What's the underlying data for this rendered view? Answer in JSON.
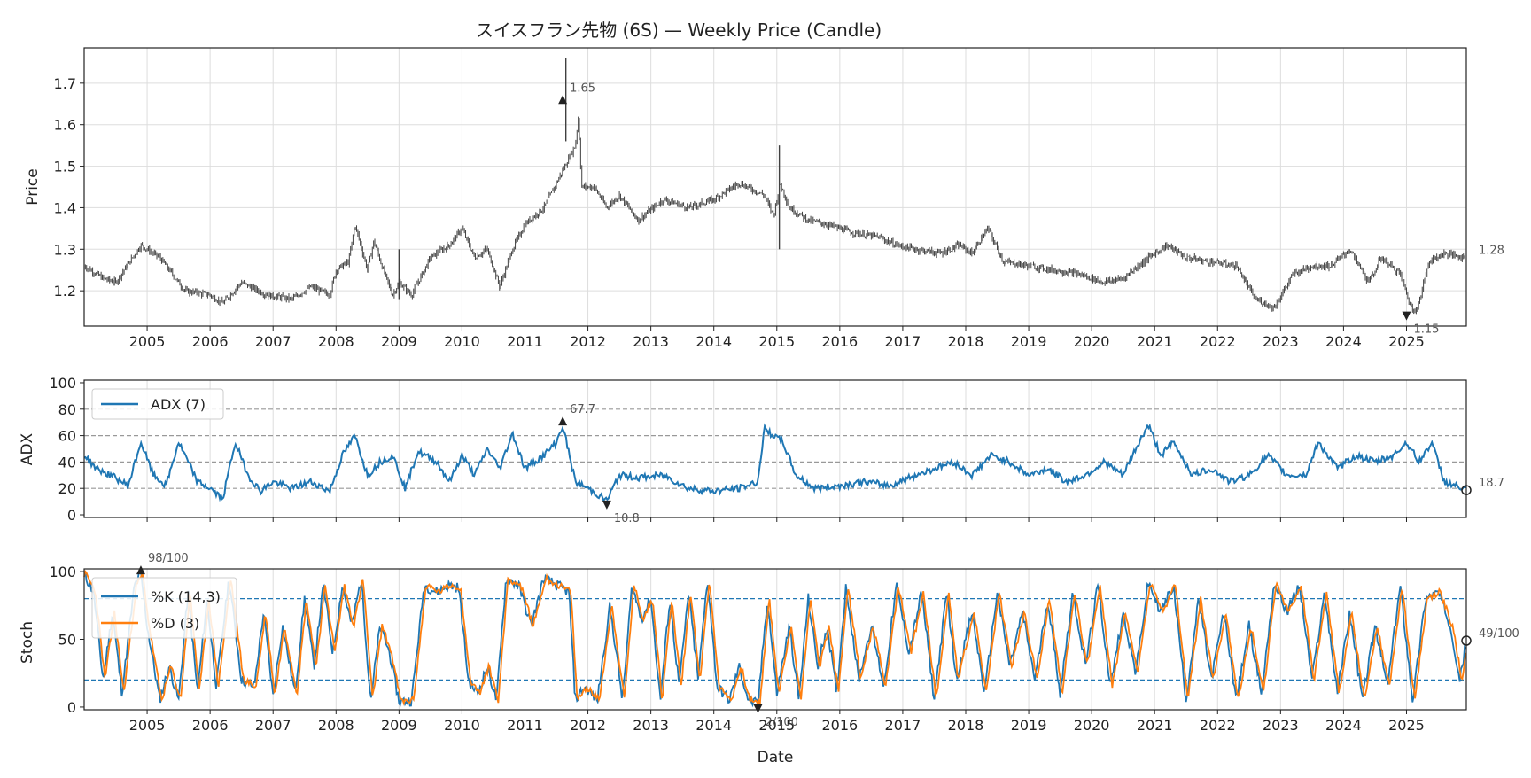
{
  "title": "スイスフラン先物 (6S) — Weekly Price (Candle)",
  "xlabel": "Date",
  "years": [
    "2005",
    "2006",
    "2007",
    "2008",
    "2009",
    "2010",
    "2011",
    "2012",
    "2013",
    "2014",
    "2015",
    "2016",
    "2017",
    "2018",
    "2019",
    "2020",
    "2021",
    "2022",
    "2023",
    "2024",
    "2025"
  ],
  "colors": {
    "price": "#404040",
    "adx": "#1f77b4",
    "k": "#1f77b4",
    "d": "#ff7f0e",
    "ref_gray": "#999999",
    "ref_blue": "#1f77b4",
    "grid": "#dddddd",
    "marker": "#222222"
  },
  "chart_data": [
    {
      "type": "candlestick",
      "title": "スイスフラン先物 (6S) — Weekly Price (Candle)",
      "ylabel": "Price",
      "ylim": [
        1.115,
        1.785
      ],
      "yticks": [
        "1.2",
        "1.3",
        "1.4",
        "1.5",
        "1.6",
        "1.7"
      ],
      "xlim": [
        2004.0,
        2025.95
      ],
      "close_keypoints": [
        [
          2004.0,
          1.26
        ],
        [
          2004.3,
          1.23
        ],
        [
          2004.5,
          1.22
        ],
        [
          2004.9,
          1.31
        ],
        [
          2005.2,
          1.28
        ],
        [
          2005.6,
          1.2
        ],
        [
          2006.0,
          1.19
        ],
        [
          2006.2,
          1.17
        ],
        [
          2006.5,
          1.22
        ],
        [
          2006.9,
          1.19
        ],
        [
          2007.3,
          1.18
        ],
        [
          2007.6,
          1.21
        ],
        [
          2007.9,
          1.19
        ],
        [
          2008.0,
          1.25
        ],
        [
          2008.2,
          1.27
        ],
        [
          2008.3,
          1.36
        ],
        [
          2008.5,
          1.25
        ],
        [
          2008.6,
          1.32
        ],
        [
          2008.75,
          1.25
        ],
        [
          2008.9,
          1.19
        ],
        [
          2009.0,
          1.22
        ],
        [
          2009.2,
          1.19
        ],
        [
          2009.5,
          1.28
        ],
        [
          2009.8,
          1.31
        ],
        [
          2010.0,
          1.35
        ],
        [
          2010.2,
          1.28
        ],
        [
          2010.4,
          1.3
        ],
        [
          2010.6,
          1.21
        ],
        [
          2010.8,
          1.3
        ],
        [
          2011.0,
          1.36
        ],
        [
          2011.3,
          1.4
        ],
        [
          2011.6,
          1.49
        ],
        [
          2011.8,
          1.55
        ],
        [
          2011.85,
          1.62
        ],
        [
          2011.9,
          1.45
        ],
        [
          2012.1,
          1.45
        ],
        [
          2012.3,
          1.4
        ],
        [
          2012.5,
          1.43
        ],
        [
          2012.8,
          1.37
        ],
        [
          2013.2,
          1.42
        ],
        [
          2013.6,
          1.4
        ],
        [
          2014.0,
          1.42
        ],
        [
          2014.4,
          1.46
        ],
        [
          2014.8,
          1.43
        ],
        [
          2014.95,
          1.38
        ],
        [
          2015.05,
          1.46
        ],
        [
          2015.2,
          1.4
        ],
        [
          2015.5,
          1.37
        ],
        [
          2015.8,
          1.36
        ],
        [
          2016.2,
          1.34
        ],
        [
          2016.6,
          1.33
        ],
        [
          2016.9,
          1.31
        ],
        [
          2017.2,
          1.3
        ],
        [
          2017.6,
          1.29
        ],
        [
          2017.9,
          1.31
        ],
        [
          2018.1,
          1.29
        ],
        [
          2018.35,
          1.35
        ],
        [
          2018.6,
          1.27
        ],
        [
          2019.0,
          1.26
        ],
        [
          2019.4,
          1.25
        ],
        [
          2019.8,
          1.24
        ],
        [
          2020.2,
          1.22
        ],
        [
          2020.5,
          1.23
        ],
        [
          2020.9,
          1.28
        ],
        [
          2021.2,
          1.31
        ],
        [
          2021.5,
          1.28
        ],
        [
          2021.9,
          1.27
        ],
        [
          2022.3,
          1.26
        ],
        [
          2022.6,
          1.18
        ],
        [
          2022.9,
          1.16
        ],
        [
          2023.2,
          1.24
        ],
        [
          2023.5,
          1.26
        ],
        [
          2023.8,
          1.26
        ],
        [
          2024.1,
          1.3
        ],
        [
          2024.4,
          1.22
        ],
        [
          2024.6,
          1.28
        ],
        [
          2024.9,
          1.24
        ],
        [
          2025.05,
          1.17
        ],
        [
          2025.1,
          1.15
        ],
        [
          2025.2,
          1.17
        ],
        [
          2025.35,
          1.27
        ],
        [
          2025.6,
          1.29
        ],
        [
          2025.95,
          1.28
        ]
      ],
      "annotations": [
        {
          "label": "1.65",
          "x": 2011.6,
          "y": 1.65,
          "marker": "up"
        },
        {
          "label": "1.15",
          "x": 2025.0,
          "y": 1.15,
          "marker": "down"
        },
        {
          "label": "1.28",
          "x": 2025.95,
          "y": 1.28,
          "marker": "none"
        }
      ]
    },
    {
      "type": "line",
      "ylabel": "ADX",
      "ylim": [
        -2,
        102
      ],
      "yticks": [
        "0",
        "20",
        "40",
        "60",
        "80",
        "100"
      ],
      "reference_lines": [
        20,
        40,
        60,
        80
      ],
      "legend": "ADX (7)",
      "series_keypoints": [
        [
          2004.0,
          45
        ],
        [
          2004.2,
          35
        ],
        [
          2004.5,
          28
        ],
        [
          2004.7,
          22
        ],
        [
          2004.9,
          55
        ],
        [
          2005.1,
          30
        ],
        [
          2005.3,
          22
        ],
        [
          2005.5,
          55
        ],
        [
          2005.8,
          25
        ],
        [
          2006.0,
          20
        ],
        [
          2006.2,
          12
        ],
        [
          2006.4,
          55
        ],
        [
          2006.6,
          30
        ],
        [
          2006.8,
          18
        ],
        [
          2007.0,
          25
        ],
        [
          2007.3,
          20
        ],
        [
          2007.6,
          25
        ],
        [
          2007.9,
          18
        ],
        [
          2008.1,
          45
        ],
        [
          2008.3,
          60
        ],
        [
          2008.5,
          30
        ],
        [
          2008.7,
          40
        ],
        [
          2008.9,
          45
        ],
        [
          2009.1,
          20
        ],
        [
          2009.3,
          48
        ],
        [
          2009.6,
          40
        ],
        [
          2009.8,
          25
        ],
        [
          2010.0,
          45
        ],
        [
          2010.2,
          30
        ],
        [
          2010.4,
          50
        ],
        [
          2010.6,
          35
        ],
        [
          2010.8,
          62
        ],
        [
          2011.0,
          35
        ],
        [
          2011.3,
          45
        ],
        [
          2011.5,
          55
        ],
        [
          2011.6,
          67.7
        ],
        [
          2011.8,
          25
        ],
        [
          2012.0,
          20
        ],
        [
          2012.3,
          10.8
        ],
        [
          2012.5,
          30
        ],
        [
          2012.8,
          28
        ],
        [
          2013.2,
          30
        ],
        [
          2013.6,
          20
        ],
        [
          2014.0,
          18
        ],
        [
          2014.4,
          20
        ],
        [
          2014.7,
          25
        ],
        [
          2014.8,
          65
        ],
        [
          2015.1,
          55
        ],
        [
          2015.3,
          30
        ],
        [
          2015.6,
          20
        ],
        [
          2016.0,
          22
        ],
        [
          2016.4,
          25
        ],
        [
          2016.8,
          22
        ],
        [
          2017.2,
          30
        ],
        [
          2017.5,
          35
        ],
        [
          2017.8,
          40
        ],
        [
          2018.1,
          30
        ],
        [
          2018.4,
          45
        ],
        [
          2018.7,
          40
        ],
        [
          2019.0,
          30
        ],
        [
          2019.3,
          35
        ],
        [
          2019.6,
          25
        ],
        [
          2019.9,
          30
        ],
        [
          2020.2,
          40
        ],
        [
          2020.5,
          30
        ],
        [
          2020.7,
          50
        ],
        [
          2020.9,
          68
        ],
        [
          2021.1,
          45
        ],
        [
          2021.3,
          55
        ],
        [
          2021.6,
          30
        ],
        [
          2021.9,
          35
        ],
        [
          2022.2,
          25
        ],
        [
          2022.5,
          30
        ],
        [
          2022.8,
          45
        ],
        [
          2023.1,
          30
        ],
        [
          2023.4,
          30
        ],
        [
          2023.6,
          55
        ],
        [
          2023.9,
          35
        ],
        [
          2024.2,
          45
        ],
        [
          2024.5,
          40
        ],
        [
          2024.8,
          45
        ],
        [
          2025.0,
          55
        ],
        [
          2025.2,
          40
        ],
        [
          2025.4,
          55
        ],
        [
          2025.6,
          25
        ],
        [
          2025.95,
          18.7
        ]
      ],
      "annotations": [
        {
          "label": "67.7",
          "x": 2011.6,
          "y": 67.7,
          "marker": "up"
        },
        {
          "label": "10.8",
          "x": 2012.3,
          "y": 10.8,
          "marker": "down"
        },
        {
          "label": "18.7",
          "x": 2025.95,
          "y": 18.7,
          "marker": "circle"
        }
      ]
    },
    {
      "type": "line",
      "ylabel": "Stoch",
      "ylim": [
        -2,
        102
      ],
      "yticks": [
        "0",
        "50",
        "100"
      ],
      "reference_lines": [
        20,
        80
      ],
      "legend": [
        "%K (14,3)",
        "%D (3)"
      ],
      "k_keypoints": [
        [
          2004.0,
          98
        ],
        [
          2004.15,
          85
        ],
        [
          2004.3,
          20
        ],
        [
          2004.45,
          70
        ],
        [
          2004.6,
          10
        ],
        [
          2004.8,
          90
        ],
        [
          2004.9,
          98
        ],
        [
          2005.0,
          60
        ],
        [
          2005.2,
          5
        ],
        [
          2005.35,
          30
        ],
        [
          2005.5,
          5
        ],
        [
          2005.65,
          85
        ],
        [
          2005.8,
          10
        ],
        [
          2005.95,
          80
        ],
        [
          2006.1,
          15
        ],
        [
          2006.3,
          95
        ],
        [
          2006.5,
          20
        ],
        [
          2006.7,
          15
        ],
        [
          2006.85,
          70
        ],
        [
          2007.0,
          8
        ],
        [
          2007.15,
          60
        ],
        [
          2007.35,
          10
        ],
        [
          2007.5,
          80
        ],
        [
          2007.65,
          30
        ],
        [
          2007.8,
          90
        ],
        [
          2007.95,
          40
        ],
        [
          2008.1,
          90
        ],
        [
          2008.25,
          60
        ],
        [
          2008.4,
          95
        ],
        [
          2008.55,
          5
        ],
        [
          2008.7,
          60
        ],
        [
          2008.85,
          40
        ],
        [
          2009.0,
          4
        ],
        [
          2009.2,
          5
        ],
        [
          2009.4,
          90
        ],
        [
          2009.6,
          85
        ],
        [
          2009.8,
          90
        ],
        [
          2009.95,
          88
        ],
        [
          2010.1,
          20
        ],
        [
          2010.25,
          10
        ],
        [
          2010.4,
          30
        ],
        [
          2010.55,
          5
        ],
        [
          2010.7,
          95
        ],
        [
          2010.9,
          90
        ],
        [
          2011.1,
          60
        ],
        [
          2011.3,
          95
        ],
        [
          2011.5,
          90
        ],
        [
          2011.7,
          85
        ],
        [
          2011.8,
          5
        ],
        [
          2011.95,
          15
        ],
        [
          2012.15,
          5
        ],
        [
          2012.35,
          75
        ],
        [
          2012.55,
          5
        ],
        [
          2012.7,
          90
        ],
        [
          2012.85,
          65
        ],
        [
          2013.0,
          80
        ],
        [
          2013.15,
          5
        ],
        [
          2013.3,
          80
        ],
        [
          2013.45,
          15
        ],
        [
          2013.6,
          85
        ],
        [
          2013.75,
          20
        ],
        [
          2013.9,
          95
        ],
        [
          2014.05,
          15
        ],
        [
          2014.25,
          5
        ],
        [
          2014.4,
          30
        ],
        [
          2014.55,
          5
        ],
        [
          2014.7,
          2
        ],
        [
          2014.85,
          80
        ],
        [
          2015.0,
          10
        ],
        [
          2015.2,
          60
        ],
        [
          2015.35,
          5
        ],
        [
          2015.5,
          80
        ],
        [
          2015.65,
          30
        ],
        [
          2015.8,
          60
        ],
        [
          2015.95,
          10
        ],
        [
          2016.1,
          90
        ],
        [
          2016.3,
          20
        ],
        [
          2016.5,
          60
        ],
        [
          2016.7,
          15
        ],
        [
          2016.9,
          90
        ],
        [
          2017.1,
          40
        ],
        [
          2017.3,
          85
        ],
        [
          2017.5,
          5
        ],
        [
          2017.7,
          85
        ],
        [
          2017.85,
          20
        ],
        [
          2018.1,
          70
        ],
        [
          2018.3,
          10
        ],
        [
          2018.5,
          85
        ],
        [
          2018.7,
          30
        ],
        [
          2018.9,
          70
        ],
        [
          2019.1,
          20
        ],
        [
          2019.3,
          80
        ],
        [
          2019.5,
          10
        ],
        [
          2019.7,
          85
        ],
        [
          2019.9,
          30
        ],
        [
          2020.1,
          90
        ],
        [
          2020.3,
          15
        ],
        [
          2020.5,
          70
        ],
        [
          2020.7,
          25
        ],
        [
          2020.9,
          92
        ],
        [
          2021.1,
          70
        ],
        [
          2021.3,
          90
        ],
        [
          2021.5,
          5
        ],
        [
          2021.7,
          80
        ],
        [
          2021.9,
          20
        ],
        [
          2022.1,
          70
        ],
        [
          2022.3,
          5
        ],
        [
          2022.5,
          60
        ],
        [
          2022.7,
          10
        ],
        [
          2022.9,
          92
        ],
        [
          2023.1,
          70
        ],
        [
          2023.3,
          90
        ],
        [
          2023.5,
          20
        ],
        [
          2023.7,
          85
        ],
        [
          2023.9,
          10
        ],
        [
          2024.1,
          70
        ],
        [
          2024.3,
          5
        ],
        [
          2024.5,
          60
        ],
        [
          2024.7,
          15
        ],
        [
          2024.9,
          90
        ],
        [
          2025.1,
          5
        ],
        [
          2025.3,
          80
        ],
        [
          2025.5,
          85
        ],
        [
          2025.7,
          60
        ],
        [
          2025.85,
          20
        ],
        [
          2025.95,
          49
        ]
      ],
      "annotations": [
        {
          "label": "98/100",
          "x": 2004.9,
          "y": 98,
          "marker": "up"
        },
        {
          "label": "2/100",
          "x": 2014.7,
          "y": 2,
          "marker": "down"
        },
        {
          "label": "49/100",
          "x": 2025.95,
          "y": 49,
          "marker": "circle"
        }
      ]
    }
  ]
}
